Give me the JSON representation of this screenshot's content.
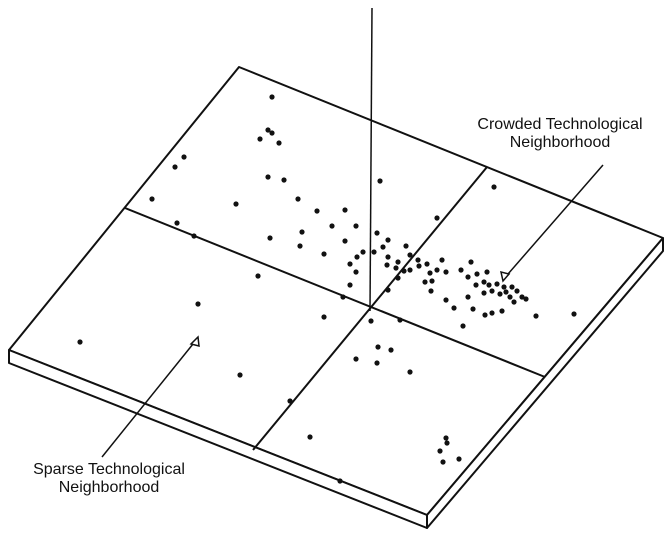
{
  "diagram": {
    "labels": {
      "crowded_line1": "Crowded Technological",
      "crowded_line2": "Neighborhood",
      "sparse_line1": "Sparse Technological",
      "sparse_line2": "Neighborhood"
    },
    "colors": {
      "ink": "#111111",
      "background": "#ffffff"
    },
    "depicted_points": 104
  }
}
